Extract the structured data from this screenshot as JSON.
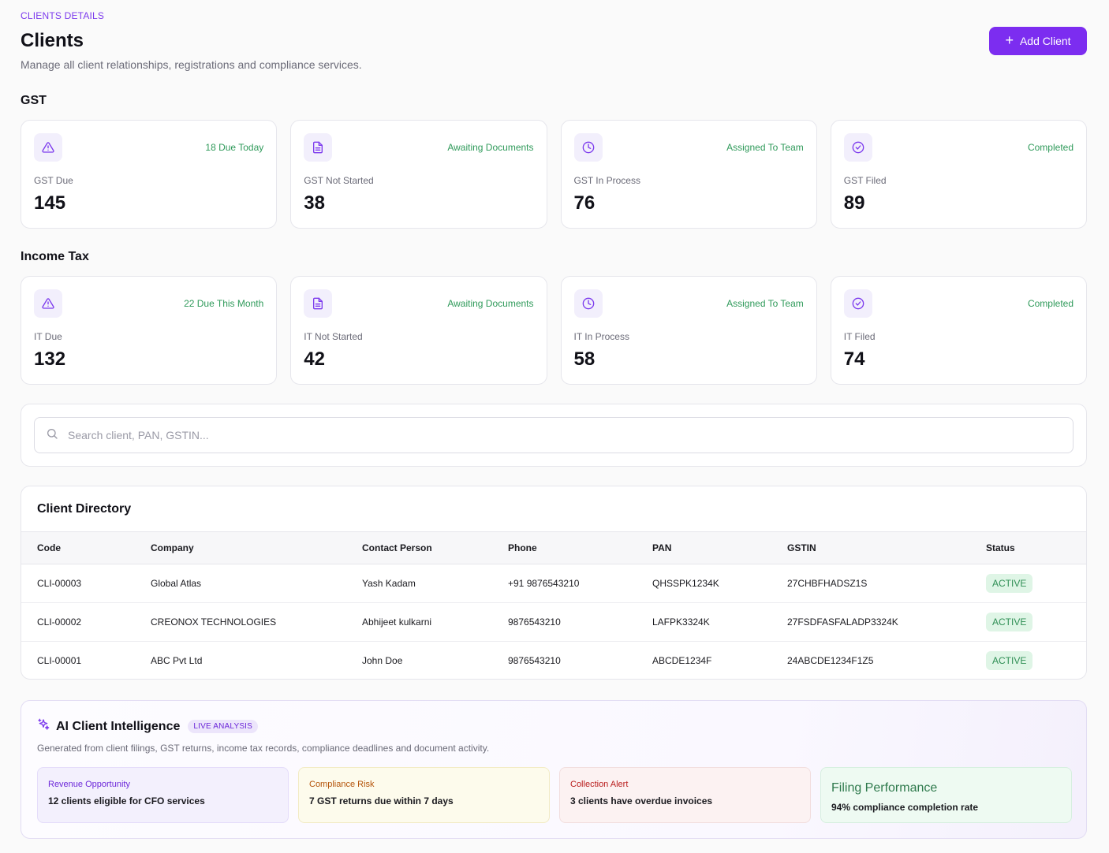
{
  "header": {
    "breadcrumb": "CLIENTS DETAILS",
    "title": "Clients",
    "subtitle": "Manage all client relationships, registrations and compliance services.",
    "add_button_label": "Add Client"
  },
  "gst": {
    "section_title": "GST",
    "cards": [
      {
        "icon": "alert-triangle-icon",
        "tag": "18 Due Today",
        "label": "GST Due",
        "value": "145"
      },
      {
        "icon": "document-icon",
        "tag": "Awaiting Documents",
        "label": "GST Not Started",
        "value": "38"
      },
      {
        "icon": "clock-icon",
        "tag": "Assigned To Team",
        "label": "GST In Process",
        "value": "76"
      },
      {
        "icon": "check-circle-icon",
        "tag": "Completed",
        "label": "GST Filed",
        "value": "89"
      }
    ]
  },
  "income_tax": {
    "section_title": "Income Tax",
    "cards": [
      {
        "icon": "alert-triangle-icon",
        "tag": "22 Due This Month",
        "label": "IT Due",
        "value": "132"
      },
      {
        "icon": "document-icon",
        "tag": "Awaiting Documents",
        "label": "IT Not Started",
        "value": "42"
      },
      {
        "icon": "clock-icon",
        "tag": "Assigned To Team",
        "label": "IT In Process",
        "value": "58"
      },
      {
        "icon": "check-circle-icon",
        "tag": "Completed",
        "label": "IT Filed",
        "value": "74"
      }
    ]
  },
  "search": {
    "placeholder": "Search client, PAN, GSTIN...",
    "value": ""
  },
  "directory": {
    "title": "Client Directory",
    "columns": [
      "Code",
      "Company",
      "Contact Person",
      "Phone",
      "PAN",
      "GSTIN",
      "Status"
    ],
    "rows": [
      [
        "CLI-00003",
        "Global Atlas",
        "Yash Kadam",
        "+91 9876543210",
        "QHSSPK1234K",
        "27CHBFHADSZ1S",
        "ACTIVE"
      ],
      [
        "CLI-00002",
        "CREONOX TECHNOLOGIES",
        "Abhijeet kulkarni",
        "9876543210",
        "LAFPK3324K",
        "27FSDFASFALADP3324K",
        "ACTIVE"
      ],
      [
        "CLI-00001",
        "ABC Pvt Ltd",
        "John Doe",
        "9876543210",
        "ABCDE1234F",
        "24ABCDE1234F1Z5",
        "ACTIVE"
      ]
    ]
  },
  "ai": {
    "title": "AI Client Intelligence",
    "badge": "LIVE ANALYSIS",
    "subtitle": "Generated from client filings, GST returns, income tax records, compliance deadlines and document activity.",
    "cards": [
      {
        "kind": "Revenue Opportunity",
        "text": "12 clients eligible for CFO services"
      },
      {
        "kind": "Compliance Risk",
        "text": "7 GST returns due within 7 days"
      },
      {
        "kind": "Collection Alert",
        "text": "3 clients have overdue invoices"
      },
      {
        "kind": "Filing Performance",
        "text": "94% compliance completion rate"
      }
    ]
  },
  "colors": {
    "accent": "#7c2df0",
    "tag_green": "#2f9a5a",
    "status_bg": "#dff5e6"
  }
}
